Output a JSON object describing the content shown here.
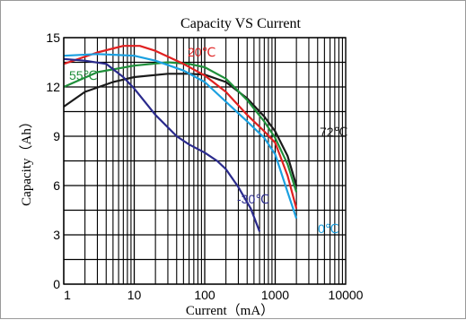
{
  "chart_data": {
    "type": "line",
    "title": "Capacity VS Current",
    "xlabel": "Current（mA）",
    "ylabel": "Capacity（Ah）",
    "xscale": "log",
    "xlim": [
      1,
      10000
    ],
    "ylim": [
      0,
      15
    ],
    "x_ticks": [
      1,
      10,
      100,
      1000,
      10000
    ],
    "x_tick_labels": [
      "1",
      "10",
      "100",
      "1000",
      "10000"
    ],
    "y_ticks": [
      0,
      3,
      6,
      9,
      12,
      15
    ],
    "y_tick_labels": [
      "0",
      "3",
      "6",
      "9",
      "12",
      "15"
    ],
    "grid": true,
    "series": [
      {
        "name": "72℃",
        "color": "#1a1a1a",
        "points": [
          [
            1,
            10.8
          ],
          [
            2,
            11.7
          ],
          [
            5,
            12.3
          ],
          [
            10,
            12.6
          ],
          [
            30,
            12.8
          ],
          [
            60,
            12.8
          ],
          [
            100,
            12.75
          ],
          [
            200,
            12.3
          ],
          [
            400,
            11.3
          ],
          [
            700,
            10.2
          ],
          [
            1000,
            9.3
          ],
          [
            1500,
            7.8
          ],
          [
            2000,
            6.0
          ]
        ]
      },
      {
        "name": "55℃",
        "color": "#1f8f3a",
        "points": [
          [
            1,
            12.0
          ],
          [
            3,
            12.9
          ],
          [
            10,
            13.3
          ],
          [
            30,
            13.5
          ],
          [
            60,
            13.4
          ],
          [
            100,
            13.2
          ],
          [
            200,
            12.5
          ],
          [
            400,
            11.2
          ],
          [
            700,
            9.9
          ],
          [
            1000,
            8.9
          ],
          [
            1500,
            7.3
          ],
          [
            2000,
            5.6
          ]
        ]
      },
      {
        "name": "20℃",
        "color": "#e02020",
        "points": [
          [
            1,
            13.4
          ],
          [
            3,
            14.1
          ],
          [
            7,
            14.5
          ],
          [
            12,
            14.5
          ],
          [
            20,
            14.2
          ],
          [
            50,
            13.4
          ],
          [
            100,
            12.7
          ],
          [
            200,
            11.7
          ],
          [
            400,
            10.3
          ],
          [
            700,
            9.3
          ],
          [
            1000,
            8.6
          ],
          [
            1500,
            6.6
          ],
          [
            2000,
            4.6
          ]
        ]
      },
      {
        "name": "0℃",
        "color": "#1aa0e0",
        "points": [
          [
            1,
            13.9
          ],
          [
            3,
            14.0
          ],
          [
            10,
            13.9
          ],
          [
            20,
            13.6
          ],
          [
            50,
            13.0
          ],
          [
            100,
            12.3
          ],
          [
            200,
            11.1
          ],
          [
            400,
            9.9
          ],
          [
            700,
            8.9
          ],
          [
            1000,
            7.9
          ],
          [
            1500,
            5.6
          ],
          [
            2000,
            4.0
          ]
        ]
      },
      {
        "name": "-30℃",
        "color": "#2a2a8c",
        "points": [
          [
            1,
            13.7
          ],
          [
            2,
            13.6
          ],
          [
            4,
            13.4
          ],
          [
            7,
            12.6
          ],
          [
            10,
            11.9
          ],
          [
            20,
            10.3
          ],
          [
            40,
            9.0
          ],
          [
            60,
            8.5
          ],
          [
            100,
            8.0
          ],
          [
            150,
            7.5
          ],
          [
            200,
            7.0
          ],
          [
            300,
            5.9
          ],
          [
            450,
            4.6
          ],
          [
            600,
            3.2
          ]
        ]
      }
    ],
    "annotations": [
      {
        "text": "20℃",
        "color": "#e02020"
      },
      {
        "text": "55℃",
        "color": "#1f8f3a"
      },
      {
        "text": "72℃",
        "color": "#1a1a1a"
      },
      {
        "text": "-30℃",
        "color": "#2a2a8c"
      },
      {
        "text": "0℃",
        "color": "#1aa0e0"
      }
    ]
  }
}
